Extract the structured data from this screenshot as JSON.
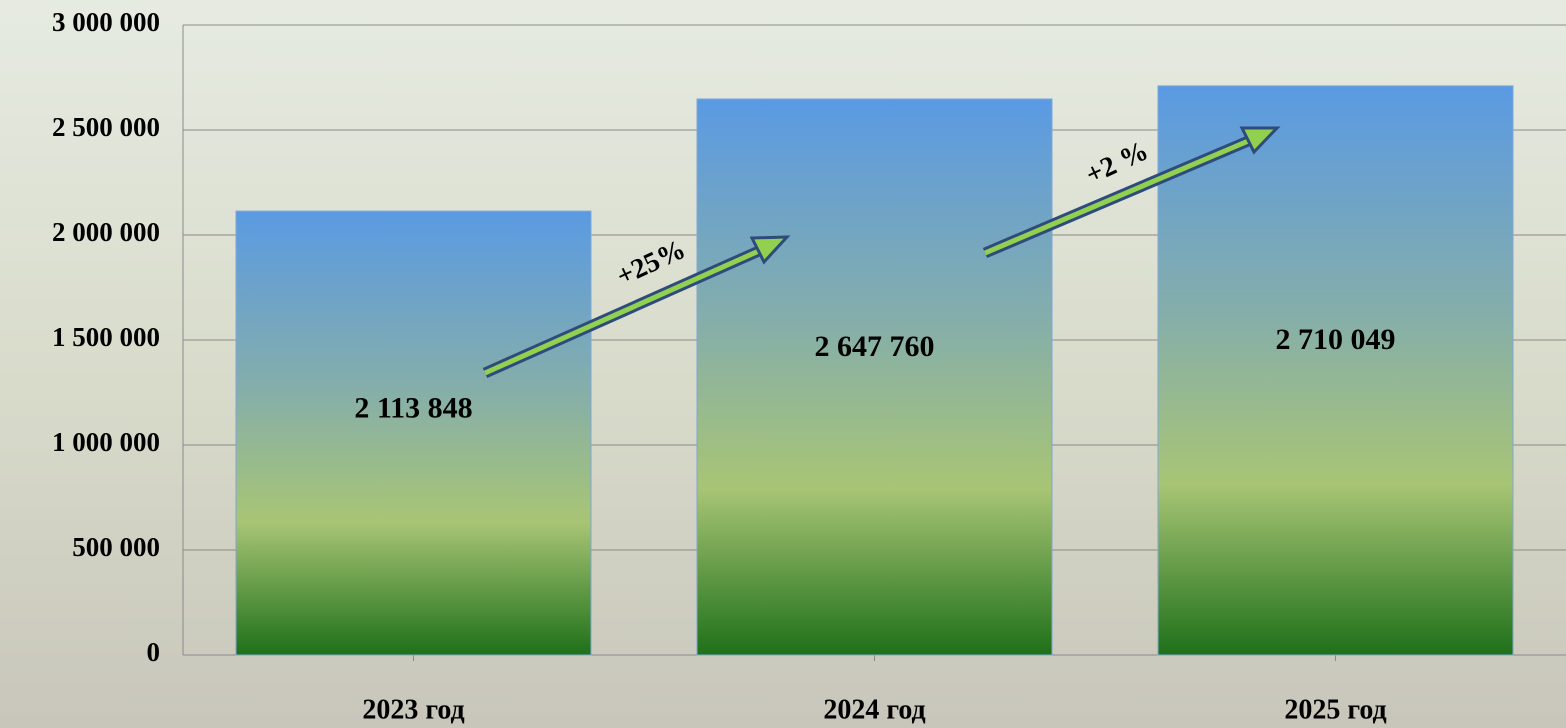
{
  "chart_data": {
    "type": "bar",
    "categories": [
      "2023 год",
      "2024 год",
      "2025 год"
    ],
    "values": [
      2113848,
      2647760,
      2710049
    ],
    "value_labels": [
      "2 113 848",
      "2 647 760",
      "2 710 049"
    ],
    "ylim": [
      0,
      3000000
    ],
    "yticks": [
      {
        "value": 0,
        "label": "0"
      },
      {
        "value": 500000,
        "label": "500 000"
      },
      {
        "value": 1000000,
        "label": "1 000 000"
      },
      {
        "value": 1500000,
        "label": "1 500 000"
      },
      {
        "value": 2000000,
        "label": "2 000 000"
      },
      {
        "value": 2500000,
        "label": "2 500 000"
      },
      {
        "value": 3000000,
        "label": "3 000 000"
      }
    ],
    "grid": true,
    "annotations": [
      "+25%",
      "+2 %"
    ]
  }
}
